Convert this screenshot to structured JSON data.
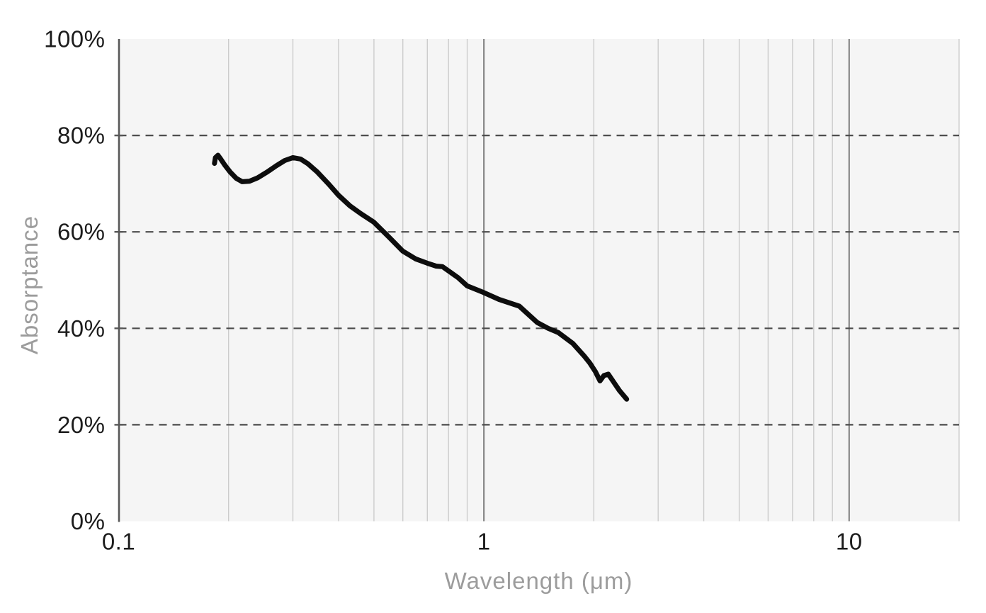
{
  "colors": {
    "page_background": "#ffffff",
    "plot_background": "#f5f5f5",
    "minor_gridline": "#c9c9c9",
    "major_gridline": "#7d7d7d",
    "dashed_gridline": "#4c4c4c",
    "y_axis_line": "#585858",
    "curve": "#0d0d0d",
    "tick_label": "#1c1c1c",
    "axis_title": "#9c9c9c"
  },
  "chart_data": {
    "type": "line",
    "title": "",
    "xlabel": "Wavelength (μm)",
    "ylabel": "Absorptance",
    "x_scale": "log",
    "xlim": [
      0.1,
      20
    ],
    "ylim": [
      0,
      100
    ],
    "x_ticks": [
      0.1,
      1,
      10
    ],
    "x_tick_labels": [
      "0.1",
      "1",
      "10"
    ],
    "y_ticks": [
      0,
      20,
      40,
      60,
      80,
      100
    ],
    "y_tick_labels": [
      "0%",
      "20%",
      "40%",
      "60%",
      "80%",
      "100%"
    ],
    "x_minor_gridlines": [
      0.2,
      0.3,
      0.4,
      0.5,
      0.6,
      0.7,
      0.8,
      0.9,
      2,
      3,
      4,
      5,
      6,
      7,
      8,
      9,
      20
    ],
    "x_major_gridlines": [
      1,
      10
    ],
    "y_dashed_gridlines": [
      20,
      40,
      60,
      80
    ],
    "grid": true,
    "legend": false,
    "series": [
      {
        "name": "absorptance",
        "color": "#0d0d0d",
        "points": [
          [
            0.183,
            74.2
          ],
          [
            0.184,
            75.4
          ],
          [
            0.187,
            75.9
          ],
          [
            0.19,
            75.2
          ],
          [
            0.195,
            73.9
          ],
          [
            0.202,
            72.4
          ],
          [
            0.21,
            71.1
          ],
          [
            0.218,
            70.4
          ],
          [
            0.228,
            70.5
          ],
          [
            0.24,
            71.2
          ],
          [
            0.255,
            72.4
          ],
          [
            0.27,
            73.7
          ],
          [
            0.285,
            74.8
          ],
          [
            0.3,
            75.4
          ],
          [
            0.315,
            75.1
          ],
          [
            0.33,
            74.1
          ],
          [
            0.35,
            72.4
          ],
          [
            0.375,
            70.0
          ],
          [
            0.4,
            67.6
          ],
          [
            0.43,
            65.4
          ],
          [
            0.46,
            63.8
          ],
          [
            0.5,
            62.0
          ],
          [
            0.55,
            58.9
          ],
          [
            0.6,
            56.0
          ],
          [
            0.65,
            54.4
          ],
          [
            0.7,
            53.5
          ],
          [
            0.74,
            52.9
          ],
          [
            0.77,
            52.8
          ],
          [
            0.79,
            52.2
          ],
          [
            0.85,
            50.5
          ],
          [
            0.9,
            48.8
          ],
          [
            1.0,
            47.4
          ],
          [
            1.1,
            46.0
          ],
          [
            1.25,
            44.6
          ],
          [
            1.4,
            41.2
          ],
          [
            1.5,
            40.0
          ],
          [
            1.6,
            39.1
          ],
          [
            1.75,
            36.9
          ],
          [
            1.88,
            34.3
          ],
          [
            1.95,
            32.8
          ],
          [
            2.02,
            31.0
          ],
          [
            2.08,
            29.1
          ],
          [
            2.13,
            30.2
          ],
          [
            2.19,
            30.5
          ],
          [
            2.26,
            29.0
          ],
          [
            2.35,
            27.1
          ],
          [
            2.46,
            25.3
          ]
        ]
      }
    ]
  }
}
